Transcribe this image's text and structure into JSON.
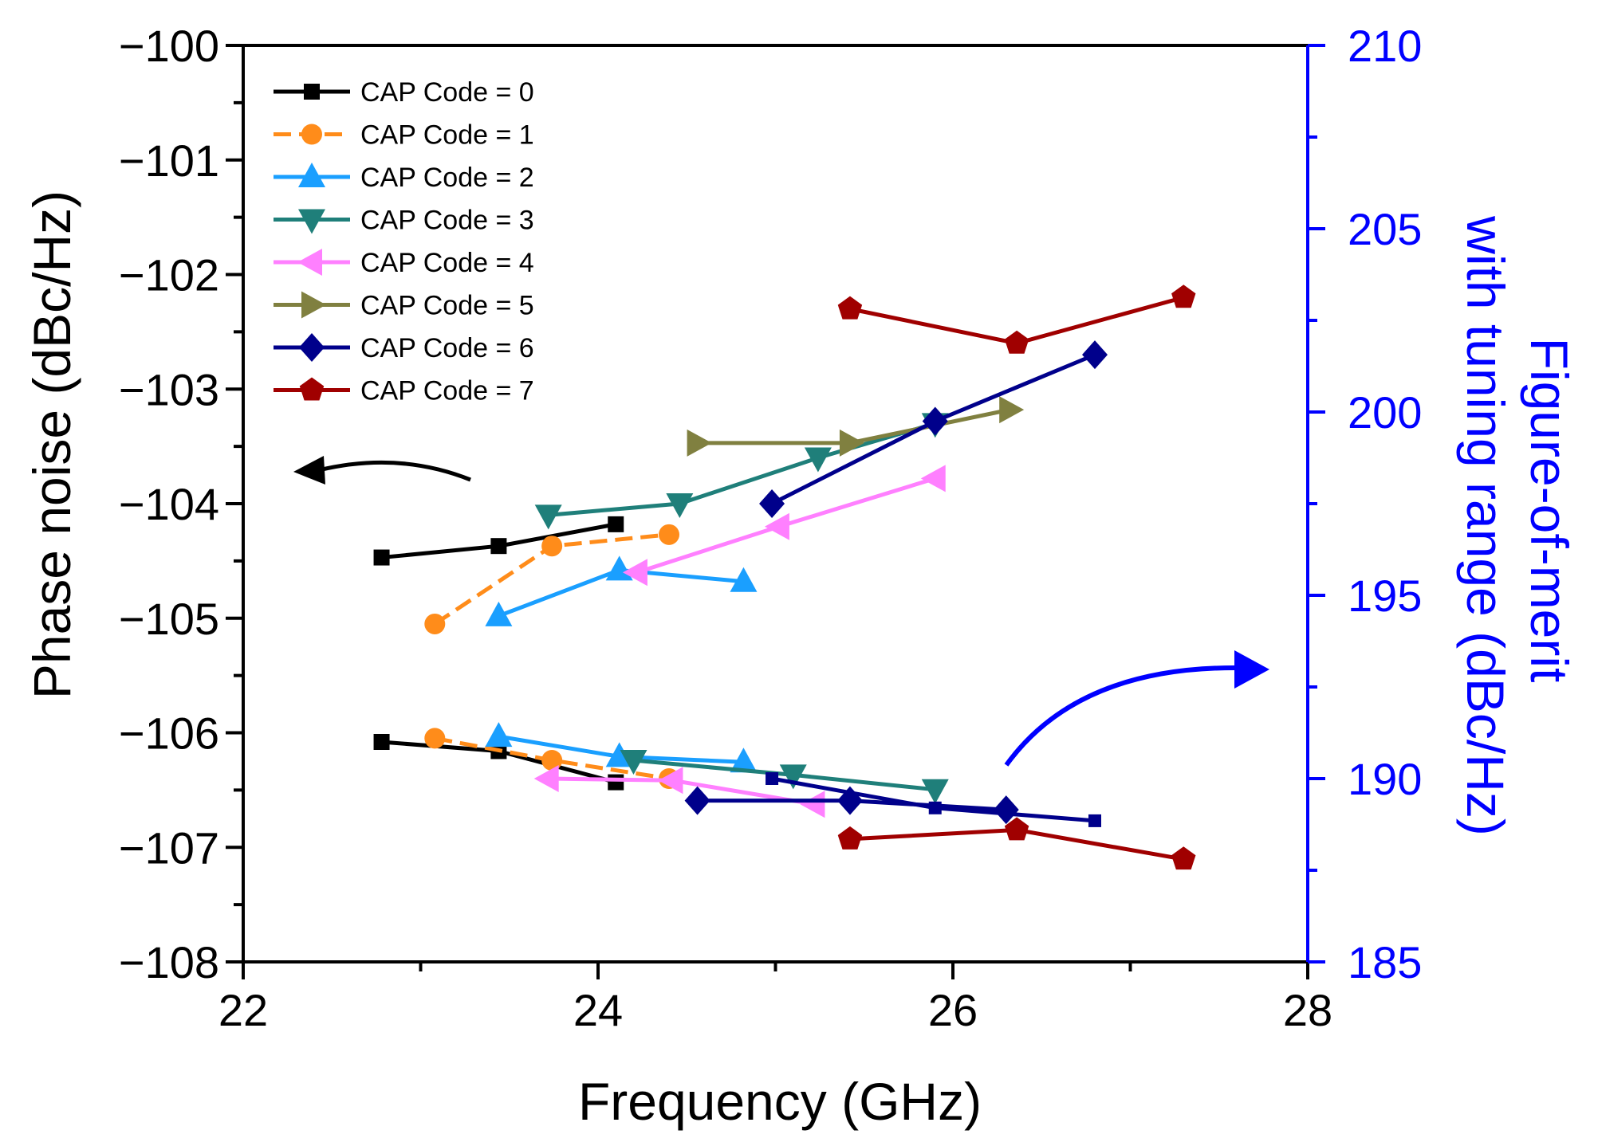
{
  "chart_data": {
    "type": "line",
    "xlabel": "Frequency (GHz)",
    "ylabel": "Phase noise (dBc/Hz)",
    "y2label_line1": "Figure-of-merit",
    "y2label_line2": "with tuning range (dBc/Hz)",
    "xlim": [
      22,
      28
    ],
    "ylim": [
      -108,
      -100
    ],
    "y2lim": [
      185,
      210
    ],
    "x_ticks": [
      22,
      24,
      26,
      28
    ],
    "x_tick_labels": [
      "22",
      "24",
      "26",
      "28"
    ],
    "y_ticks": [
      -100,
      -101,
      -102,
      -103,
      -104,
      -105,
      -106,
      -107,
      -108
    ],
    "y_tick_labels": [
      "−100",
      "−101",
      "−102",
      "−103",
      "−104",
      "−105",
      "−106",
      "−107",
      "−108"
    ],
    "y2_ticks": [
      210,
      205,
      200,
      195,
      190,
      185
    ],
    "y2_tick_labels": [
      "210",
      "205",
      "200",
      "195",
      "190",
      "185"
    ],
    "legend_position": "top-left",
    "colors": {
      "left_axis": "#000000",
      "right_axis": "#0000ff"
    },
    "series": [
      {
        "name": "CAP Code = 0",
        "color": "#000000",
        "marker": "square",
        "dashed": false,
        "phase_noise": {
          "x": [
            22.78,
            23.44,
            24.1
          ],
          "y": [
            -104.47,
            -104.37,
            -104.18
          ]
        },
        "fom": {
          "x": [
            22.78,
            23.44,
            24.1
          ],
          "y": [
            191.0,
            190.75,
            189.9
          ]
        }
      },
      {
        "name": "CAP Code = 1",
        "color": "#ff8c1a",
        "marker": "circle",
        "dashed": true,
        "phase_noise": {
          "x": [
            23.08,
            23.74,
            24.4
          ],
          "y": [
            -105.05,
            -104.37,
            -104.27
          ]
        },
        "fom": {
          "x": [
            23.08,
            23.74,
            24.4
          ],
          "y": [
            191.1,
            190.5,
            190.0
          ]
        }
      },
      {
        "name": "CAP Code = 2",
        "color": "#1a9fff",
        "marker": "triangle-up",
        "dashed": false,
        "phase_noise": {
          "x": [
            23.44,
            24.12,
            24.82
          ],
          "y": [
            -104.98,
            -104.58,
            -104.68
          ]
        },
        "fom": {
          "x": [
            23.44,
            24.12,
            24.82
          ],
          "y": [
            191.15,
            190.6,
            190.45
          ]
        }
      },
      {
        "name": "CAP Code = 3",
        "color": "#1f7f7a",
        "marker": "triangle-down",
        "dashed": false,
        "phase_noise": {
          "x": [
            23.72,
            24.46,
            25.24,
            25.9
          ],
          "y": [
            -104.1,
            -104.0,
            -103.6,
            -103.3
          ]
        },
        "fom": {
          "x": [
            24.2,
            25.1,
            25.9
          ],
          "y": [
            190.5,
            190.1,
            189.7
          ]
        }
      },
      {
        "name": "CAP Code = 4",
        "color": "#ff80ff",
        "marker": "triangle-left",
        "dashed": false,
        "phase_noise": {
          "x": [
            24.22,
            25.02,
            25.9
          ],
          "y": [
            -104.6,
            -104.2,
            -103.78
          ]
        },
        "fom": {
          "x": [
            23.72,
            24.42,
            25.22
          ],
          "y": [
            190.0,
            189.95,
            189.3
          ]
        }
      },
      {
        "name": "CAP Code = 5",
        "color": "#808040",
        "marker": "triangle-right",
        "dashed": false,
        "phase_noise": {
          "x": [
            24.56,
            25.42,
            26.32
          ],
          "y": [
            -103.47,
            -103.47,
            -103.18
          ]
        },
        "fom": {
          "x": [],
          "y": []
        }
      },
      {
        "name": "CAP Code = 6",
        "color": "#00008b",
        "marker": "diamond",
        "dashed": false,
        "phase_noise": {
          "x": [
            24.98,
            25.9,
            26.8
          ],
          "y": [
            -104.0,
            -103.28,
            -102.7
          ]
        },
        "fom": {
          "x": [
            24.56,
            25.42,
            26.3
          ],
          "y": [
            189.4,
            189.4,
            189.15
          ]
        }
      },
      {
        "name": "CAP Code = 7",
        "color": "#a00000",
        "marker": "pentagon",
        "dashed": false,
        "phase_noise": {
          "x": [
            25.42,
            26.36,
            27.3
          ],
          "y": [
            -102.3,
            -102.6,
            -102.2
          ]
        },
        "fom": {
          "x": [
            25.42,
            26.36,
            27.3
          ],
          "y": [
            188.35,
            188.6,
            187.8
          ]
        }
      }
    ],
    "extra_lines": [
      {
        "color": "#00008b",
        "marker": "small-square",
        "x": [
          24.98,
          25.9,
          26.8
        ],
        "y2": [
          190.0,
          189.2,
          188.85
        ]
      }
    ],
    "annotations": [
      {
        "name": "left-axis-arrow",
        "color": "#000000",
        "points_to": "left axis"
      },
      {
        "name": "right-axis-arrow",
        "color": "#0000ff",
        "points_to": "right axis"
      }
    ]
  }
}
